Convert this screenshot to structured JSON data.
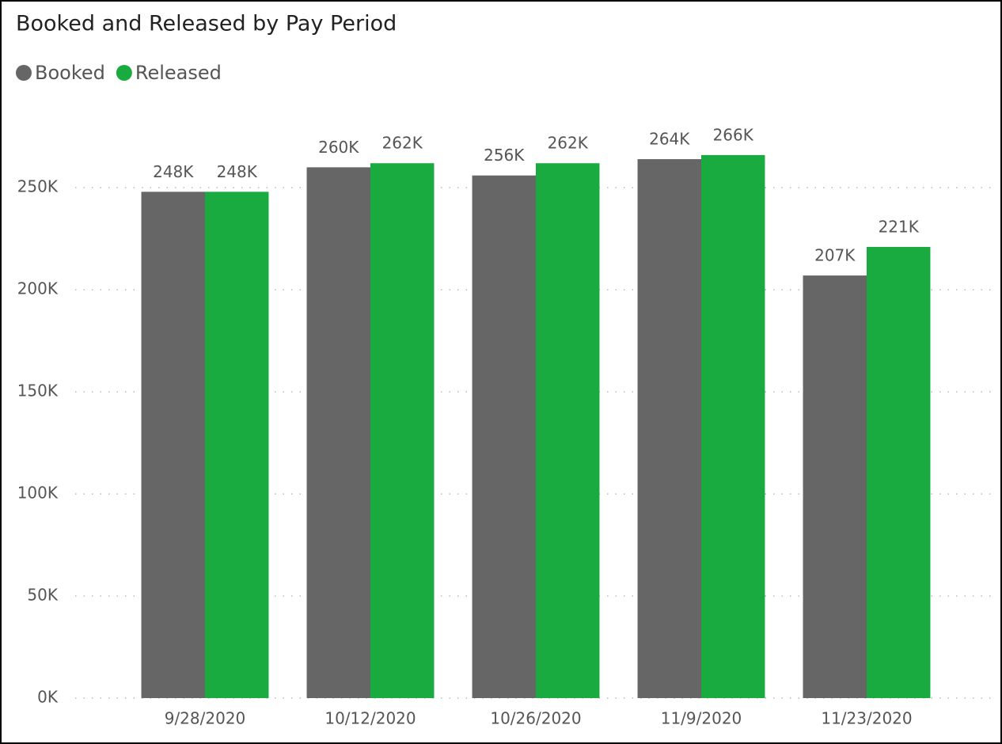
{
  "chart_data": {
    "type": "bar",
    "title": "Booked and Released by Pay Period",
    "categories": [
      "9/28/2020",
      "10/12/2020",
      "10/26/2020",
      "11/9/2020",
      "11/23/2020"
    ],
    "series": [
      {
        "name": "Booked",
        "color": "#666666",
        "values": [
          248000,
          260000,
          256000,
          264000,
          207000
        ],
        "value_labels": [
          "248K",
          "260K",
          "256K",
          "264K",
          "207K"
        ]
      },
      {
        "name": "Released",
        "color": "#1aab40",
        "values": [
          248000,
          262000,
          262000,
          266000,
          221000
        ],
        "value_labels": [
          "248K",
          "262K",
          "262K",
          "266K",
          "221K"
        ]
      }
    ],
    "ylim": [
      0,
      290000
    ],
    "yticks": [
      {
        "value": 0,
        "label": "0K"
      },
      {
        "value": 50000,
        "label": "50K"
      },
      {
        "value": 100000,
        "label": "100K"
      },
      {
        "value": 150000,
        "label": "150K"
      },
      {
        "value": 200000,
        "label": "200K"
      },
      {
        "value": 250000,
        "label": "250K"
      }
    ],
    "grid": true,
    "legend": "top-left"
  }
}
